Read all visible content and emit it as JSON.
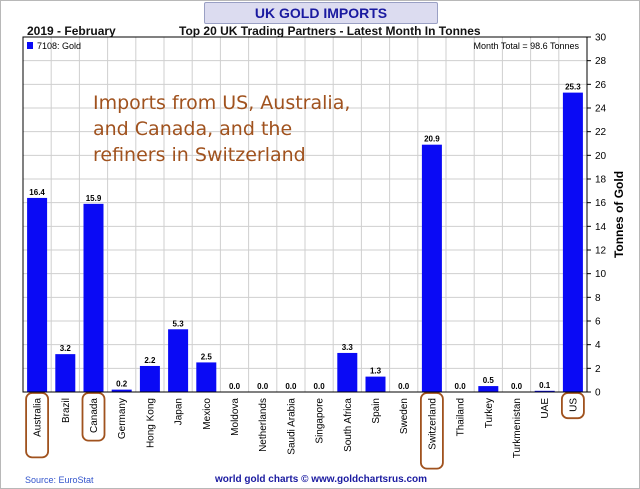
{
  "header": {
    "title": "UK GOLD IMPORTS",
    "date_label": "2019 - February",
    "subtitle": "Top 20 UK Trading Partners - Latest Month In Tonnes"
  },
  "footer": {
    "source": "Source: EuroStat",
    "credit": "world gold charts © www.goldchartsrus.com"
  },
  "colors": {
    "bar": "#0a0af5",
    "annotation": "#a0521e",
    "title": "#1a1aa0"
  },
  "chart_data": {
    "type": "bar",
    "categories": [
      "Australia",
      "Brazil",
      "Canada",
      "Germany",
      "Hong Kong",
      "Japan",
      "Mexico",
      "Moldova",
      "Netherlands",
      "Saudi Arabia",
      "Singapore",
      "South Africa",
      "Spain",
      "Sweden",
      "Switzerland",
      "Thailand",
      "Turkey",
      "Turkmenistan",
      "UAE",
      "US"
    ],
    "series": [
      {
        "name": "7108: Gold",
        "values": [
          16.4,
          3.2,
          15.9,
          0.2,
          2.2,
          5.3,
          2.5,
          0.0,
          0.0,
          0.0,
          0.0,
          3.3,
          1.3,
          0.0,
          20.9,
          0.0,
          0.5,
          0.0,
          0.1,
          25.3
        ]
      }
    ],
    "data_labels": [
      "16.4",
      "3.2",
      "15.9",
      "0.2",
      "2.2",
      "5.3",
      "2.5",
      "0.0",
      "0.0",
      "0.0",
      "0.0",
      "3.3",
      "1.3",
      "0.0",
      "20.9",
      "0.0",
      "0.5",
      "0.0",
      "0.1",
      "25.3"
    ],
    "ylabel": "Tonnes of Gold",
    "ylim": [
      0,
      30
    ],
    "yticks": [
      "0",
      "2",
      "4",
      "6",
      "8",
      "10",
      "12",
      "14",
      "16",
      "18",
      "20",
      "22",
      "24",
      "26",
      "28",
      "30"
    ],
    "y_axis_side": "right",
    "grid": true,
    "legend": {
      "label": "7108: Gold",
      "position": "top-left"
    },
    "total_note": "Month Total = 98.6 Tonnes",
    "annotation": [
      "Imports from US, Australia,",
      "and Canada, and the",
      "refiners in Switzerland"
    ],
    "highlighted": [
      "Australia",
      "Canada",
      "Switzerland",
      "US"
    ]
  }
}
